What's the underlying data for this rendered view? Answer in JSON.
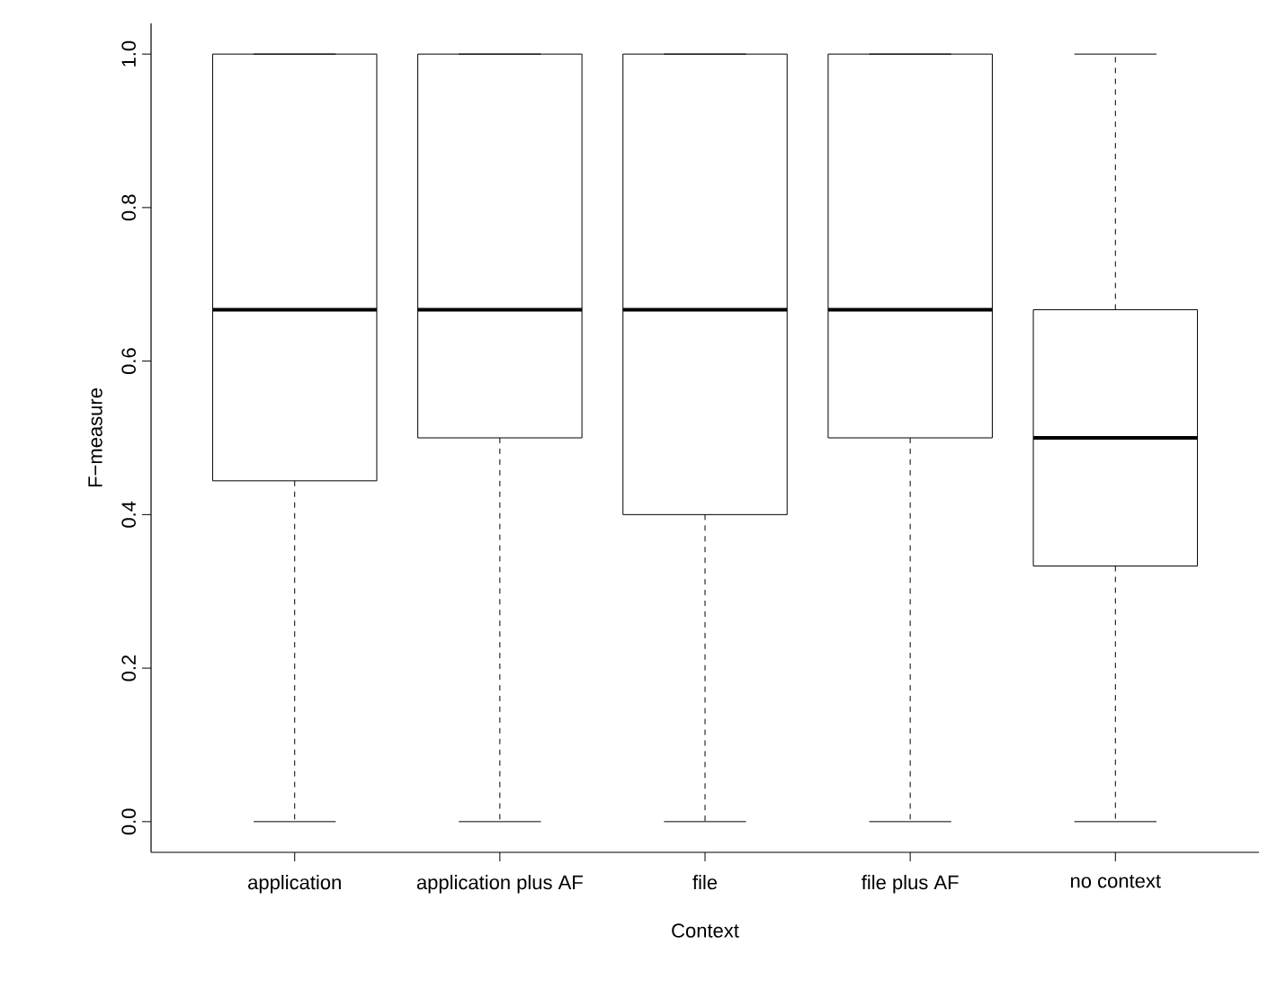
{
  "chart_data": {
    "type": "box",
    "xlabel": "Context",
    "ylabel": "F−measure",
    "categories": [
      "application",
      "application plus AF",
      "file",
      "file plus AF",
      "no context"
    ],
    "boxes": [
      {
        "low": 0,
        "q1": 0.444,
        "median": 0.667,
        "q3": 1,
        "high": 1
      },
      {
        "low": 0,
        "q1": 0.5,
        "median": 0.667,
        "q3": 1,
        "high": 1
      },
      {
        "low": 0,
        "q1": 0.4,
        "median": 0.667,
        "q3": 1,
        "high": 1
      },
      {
        "low": 0,
        "q1": 0.5,
        "median": 0.667,
        "q3": 1,
        "high": 1
      },
      {
        "low": 0,
        "q1": 0.333,
        "median": 0.5,
        "q3": 0.667,
        "high": 1
      }
    ],
    "ylim": [
      -0.04,
      1.04
    ],
    "yticks": [
      {
        "value": 0,
        "label": "0.0"
      },
      {
        "value": 0.2,
        "label": "0.2"
      },
      {
        "value": 0.4,
        "label": "0.4"
      },
      {
        "value": 0.6,
        "label": "0.6"
      },
      {
        "value": 0.8,
        "label": "0.8"
      },
      {
        "value": 1,
        "label": "1.0"
      }
    ]
  }
}
